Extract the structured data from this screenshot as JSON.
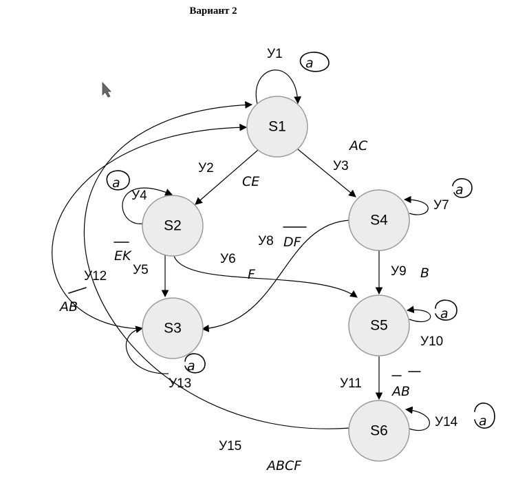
{
  "title": "Вариант 2",
  "states": [
    {
      "id": "S1",
      "label": "S1"
    },
    {
      "id": "S2",
      "label": "S2"
    },
    {
      "id": "S3",
      "label": "S3"
    },
    {
      "id": "S4",
      "label": "S4"
    },
    {
      "id": "S5",
      "label": "S5"
    },
    {
      "id": "S6",
      "label": "S6"
    }
  ],
  "transitions": [
    {
      "id": "y1",
      "label": "У1",
      "from": "S1",
      "to": "S1",
      "note": "a"
    },
    {
      "id": "y2",
      "label": "У2",
      "from": "S1",
      "to": "S2",
      "note": "CE"
    },
    {
      "id": "y3",
      "label": "У3",
      "from": "S1",
      "to": "S4",
      "note": "AC"
    },
    {
      "id": "y4",
      "label": "У4",
      "from": "S2",
      "to": "S2",
      "note": "a"
    },
    {
      "id": "y5",
      "label": "У5",
      "from": "S2",
      "to": "S3",
      "note": "EK"
    },
    {
      "id": "y6",
      "label": "У6",
      "from": "S2",
      "to": "S5",
      "note": "F"
    },
    {
      "id": "y7",
      "label": "У7",
      "from": "S4",
      "to": "S4",
      "note": "a"
    },
    {
      "id": "y8",
      "label": "У8",
      "from": "S4",
      "to": "S3",
      "note": "DF"
    },
    {
      "id": "y9",
      "label": "У9",
      "from": "S4",
      "to": "S5",
      "note": "B"
    },
    {
      "id": "y10",
      "label": "У10",
      "from": "S5",
      "to": "S5",
      "note": "a"
    },
    {
      "id": "y11",
      "label": "У11",
      "from": "S5",
      "to": "S6",
      "note": "AB"
    },
    {
      "id": "y12",
      "label": "У12",
      "from": "S3",
      "to": "S1",
      "note": "AB"
    },
    {
      "id": "y13",
      "label": "У13",
      "from": "S3",
      "to": "S3",
      "note": "a"
    },
    {
      "id": "y14",
      "label": "У14",
      "from": "S6",
      "to": "S6",
      "note": "a"
    },
    {
      "id": "y15",
      "label": "У15",
      "from": "S6",
      "to": "S1",
      "note": "ABCF"
    }
  ]
}
